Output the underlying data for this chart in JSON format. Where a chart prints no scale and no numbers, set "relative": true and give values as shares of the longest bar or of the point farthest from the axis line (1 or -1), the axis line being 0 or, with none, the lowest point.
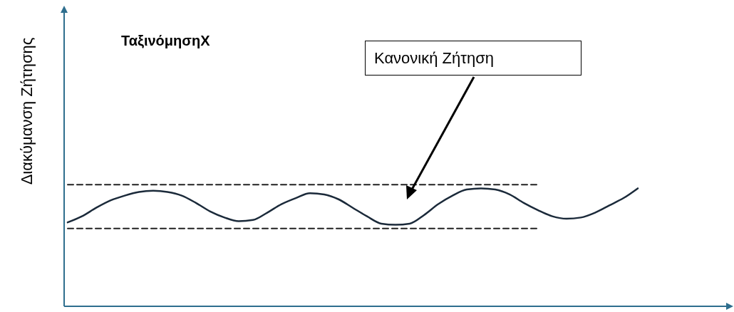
{
  "chart_data": {
    "type": "line",
    "title": "ΤαξινόμησηX",
    "ylabel": "Διακύμανση Ζήτησης",
    "relative": true,
    "marker": "none",
    "categories": [
      null,
      null,
      null,
      null,
      null,
      null,
      null,
      null,
      null,
      null,
      null,
      null,
      null,
      null,
      null,
      null,
      null,
      null,
      null,
      null,
      null,
      null,
      null,
      null,
      null,
      null,
      null,
      null,
      null,
      null,
      null,
      null,
      null,
      null,
      null,
      null,
      null,
      null,
      null,
      null,
      null,
      null,
      null,
      null,
      null,
      null,
      null
    ],
    "series": [
      {
        "color": "#1b2a3a",
        "line_style": "solid",
        "values": [
          0.69,
          0.74,
          0.81,
          0.87,
          0.91,
          0.94,
          0.95,
          0.94,
          0.91,
          0.85,
          0.78,
          0.73,
          0.7,
          0.71,
          0.77,
          0.84,
          0.89,
          0.93,
          0.92,
          0.88,
          0.81,
          0.74,
          0.68,
          0.67,
          0.68,
          0.75,
          0.84,
          0.91,
          0.96,
          0.97,
          0.96,
          0.92,
          0.85,
          0.79,
          0.74,
          0.72,
          0.73,
          0.77,
          0.83,
          0.89,
          0.97,
          null,
          null,
          null,
          null,
          null,
          null
        ]
      },
      {
        "color": "#222222",
        "line_style": "dashed",
        "values": [
          1,
          1,
          1,
          1,
          1,
          1,
          1,
          1,
          1,
          1,
          1,
          1,
          1,
          1,
          1,
          1,
          1,
          1,
          1,
          1,
          1,
          1,
          1,
          1,
          1,
          1,
          1,
          1,
          1,
          1,
          1,
          1,
          1,
          1,
          null,
          null,
          null,
          null,
          null,
          null,
          null,
          null,
          null,
          null,
          null,
          null,
          null
        ]
      },
      {
        "color": "#222222",
        "line_style": "dashed",
        "values": [
          0.64,
          0.64,
          0.64,
          0.64,
          0.64,
          0.64,
          0.64,
          0.64,
          0.64,
          0.64,
          0.64,
          0.64,
          0.64,
          0.64,
          0.64,
          0.64,
          0.64,
          0.64,
          0.64,
          0.64,
          0.64,
          0.64,
          0.64,
          0.64,
          0.64,
          0.64,
          0.64,
          0.64,
          0.64,
          0.64,
          0.64,
          0.64,
          0.64,
          0.64,
          null,
          null,
          null,
          null,
          null,
          null,
          null,
          null,
          null,
          null,
          null,
          null,
          null
        ]
      }
    ],
    "annotations": [
      "Κανονική Ζήτηση"
    ]
  }
}
